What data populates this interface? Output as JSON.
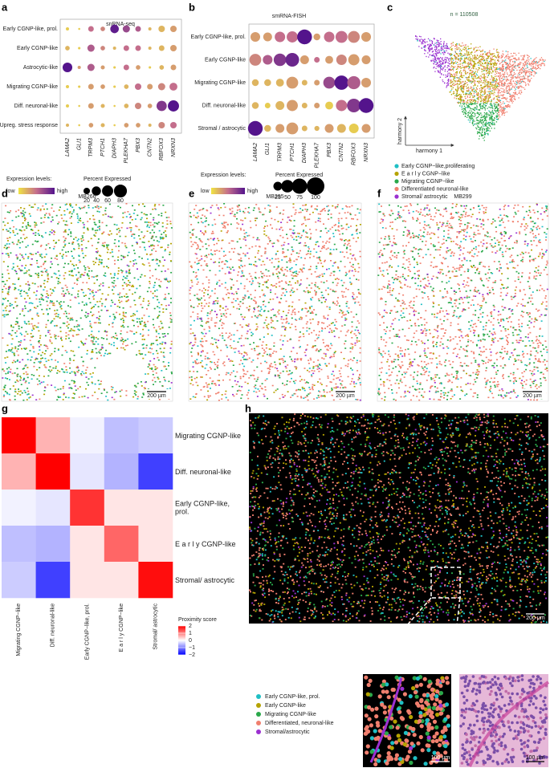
{
  "chart_data": [
    {
      "type": "dot",
      "panel": "a",
      "title": "snRNA-seq",
      "rows": [
        "Early CGNP-like, prol.",
        "Early CGNP-like",
        "Astrocytic-like",
        "Migrating CGNP-like",
        "Diff. neuronal-like",
        "Upreg. stress response"
      ],
      "genes": [
        "LAMA2",
        "GLI1",
        "TRPM3",
        "PTCH1",
        "DIAPH3",
        "PLEKHA7",
        "PBX3",
        "CNTN2",
        "RBFOX3",
        "NRXN3"
      ],
      "percent": [
        [
          5,
          2,
          15,
          10,
          35,
          25,
          15,
          5,
          20,
          20
        ],
        [
          10,
          3,
          25,
          10,
          5,
          15,
          15,
          5,
          15,
          20
        ],
        [
          45,
          5,
          25,
          8,
          3,
          15,
          10,
          3,
          10,
          15
        ],
        [
          5,
          3,
          15,
          10,
          3,
          10,
          20,
          15,
          25,
          30
        ],
        [
          5,
          2,
          15,
          8,
          2,
          10,
          20,
          10,
          50,
          60
        ],
        [
          5,
          2,
          10,
          8,
          2,
          10,
          10,
          5,
          20,
          20
        ]
      ],
      "expression": [
        [
          0.1,
          0.1,
          0.5,
          0.4,
          0.95,
          0.7,
          0.6,
          0.2,
          0.2,
          0.3
        ],
        [
          0.2,
          0.1,
          0.6,
          0.4,
          0.2,
          0.5,
          0.5,
          0.2,
          0.2,
          0.3
        ],
        [
          1.0,
          0.3,
          0.6,
          0.3,
          0.1,
          0.5,
          0.3,
          0.1,
          0.2,
          0.3
        ],
        [
          0.1,
          0.1,
          0.3,
          0.3,
          0.1,
          0.2,
          0.5,
          0.3,
          0.4,
          0.5
        ],
        [
          0.1,
          0.1,
          0.3,
          0.2,
          0.1,
          0.2,
          0.4,
          0.3,
          0.8,
          1.0
        ],
        [
          0.2,
          0.1,
          0.3,
          0.2,
          0.1,
          0.3,
          0.3,
          0.2,
          0.4,
          0.5
        ]
      ],
      "color_scale": [
        "#f0e442",
        "#c46e8c",
        "#54148c"
      ],
      "color_lim": [
        0,
        1
      ],
      "color_legend_title": "Expression levels:",
      "color_legend_labels": [
        "low",
        "high"
      ],
      "size_legend_title": "Percent Expressed",
      "size_legend": [
        20,
        40,
        60,
        80
      ],
      "size_lim": [
        0,
        100
      ]
    },
    {
      "type": "dot",
      "panel": "b",
      "title": "smRNA-FISH",
      "rows": [
        "Early CGNP-like, prol.",
        "Early CGNP-like",
        "Migrating CGNP-like",
        "Diff. neuronal-like",
        "Stromal / astrocytic"
      ],
      "genes": [
        "LAMA2",
        "GLI1",
        "TRPM3",
        "PTCH1",
        "DIAPH3",
        "PLEKHA7",
        "PBX3",
        "CNTN2",
        "RBFOX3",
        "NRXN3"
      ],
      "percent": [
        [
          30,
          25,
          35,
          40,
          70,
          15,
          35,
          45,
          45,
          30
        ],
        [
          45,
          30,
          50,
          60,
          25,
          10,
          20,
          35,
          40,
          25
        ],
        [
          15,
          15,
          20,
          45,
          10,
          10,
          45,
          65,
          55,
          30
        ],
        [
          15,
          10,
          25,
          40,
          10,
          10,
          20,
          40,
          60,
          70
        ],
        [
          70,
          15,
          25,
          45,
          10,
          8,
          25,
          25,
          30,
          25
        ]
      ],
      "expression": [
        [
          0.3,
          0.3,
          0.5,
          0.5,
          1.0,
          0.3,
          0.5,
          0.5,
          0.4,
          0.3
        ],
        [
          0.4,
          0.6,
          0.8,
          0.9,
          0.3,
          0.5,
          0.3,
          0.4,
          0.3,
          0.3
        ],
        [
          0.2,
          0.2,
          0.2,
          0.3,
          0.2,
          0.3,
          0.7,
          1.0,
          0.6,
          0.3
        ],
        [
          0.2,
          0.1,
          0.2,
          0.3,
          0.2,
          0.3,
          0.1,
          0.5,
          0.8,
          1.0
        ],
        [
          1.0,
          0.2,
          0.3,
          0.3,
          0.2,
          0.2,
          0.3,
          0.2,
          0.1,
          0.3
        ]
      ],
      "color_scale": [
        "#f0e442",
        "#c46e8c",
        "#54148c"
      ],
      "color_lim": [
        0,
        1
      ],
      "color_legend_title": "Expression levels:",
      "color_legend_labels": [
        "low",
        "high"
      ],
      "size_legend_title": "Percent Expressed",
      "size_legend": [
        25,
        50,
        75,
        100
      ],
      "size_lim": [
        0,
        100
      ]
    },
    {
      "type": "scatter",
      "panel": "c",
      "title": "n = 110508",
      "xlabel": "harmony 1",
      "ylabel": "harmony 2",
      "series": [
        {
          "name": "Early CGNP−like,proliferating",
          "color": "#1fbfc4"
        },
        {
          "name": "E a r l y  CGNP−like",
          "color": "#b5a300"
        },
        {
          "name": "Migrating CGNP−like",
          "color": "#2aa84a"
        },
        {
          "name": "Differentiated neuronal-like",
          "color": "#f07f6e"
        },
        {
          "name": "Stromal/ astrocytic",
          "color": "#9b30d0"
        }
      ]
    },
    {
      "type": "heatmap",
      "panel": "g",
      "row_labels": [
        "Migrating CGNP-like",
        "Diff. neuronal-like",
        "Early CGNP-like, prol.",
        "E a r l y CGNP-like",
        "Stromal/ astrocytic"
      ],
      "column_labels": [
        "Migrating CGNP−like",
        "Diff. neuronal-like",
        "Early CGNP−like, prol.",
        "E a r l y CGNP−like",
        "Stromal/ astrocytic"
      ],
      "values": [
        [
          2,
          0.6,
          -0.1,
          -0.5,
          -0.4
        ],
        [
          0.6,
          2,
          -0.2,
          -0.6,
          -1.5
        ],
        [
          -0.1,
          -0.2,
          1.6,
          0.2,
          0.2
        ],
        [
          -0.5,
          -0.6,
          0.2,
          1.2,
          0.2
        ],
        [
          -0.4,
          -1.5,
          0.2,
          0.2,
          1.9
        ]
      ],
      "color_scale": [
        "#0000ff",
        "#ffffff",
        "#ff0000"
      ],
      "clim": [
        -2,
        2
      ],
      "legend_title": "Proximity score",
      "ticks": [
        2,
        1,
        0,
        {
          "value": -1,
          "label": "−1"
        },
        {
          "value": -2,
          "label": "−2"
        }
      ]
    }
  ],
  "panels": [
    {
      "label": "d",
      "title": "MB266",
      "scale_bar": "200 µm"
    },
    {
      "label": "e",
      "title": "MB295",
      "scale_bar": "200 µm"
    },
    {
      "label": "f",
      "title": "MB299",
      "scale_bar": "200 µm"
    }
  ],
  "panel_h": {
    "label": "h",
    "scale_bar": "200 µm",
    "inset_scale_bars": [
      "100 µm",
      "100 µm"
    ],
    "legend": [
      {
        "name": "Early CGNP-like, prol.",
        "color": "#1fbfc4"
      },
      {
        "name": "Early CGNP-like",
        "color": "#b5a300"
      },
      {
        "name": "Migrating CGNP-like",
        "color": "#2aa84a"
      },
      {
        "name": "Differentiated, neuronal-like",
        "color": "#f07f6e"
      },
      {
        "name": "Stromal/astrocytic",
        "color": "#9b30d0"
      }
    ]
  }
}
